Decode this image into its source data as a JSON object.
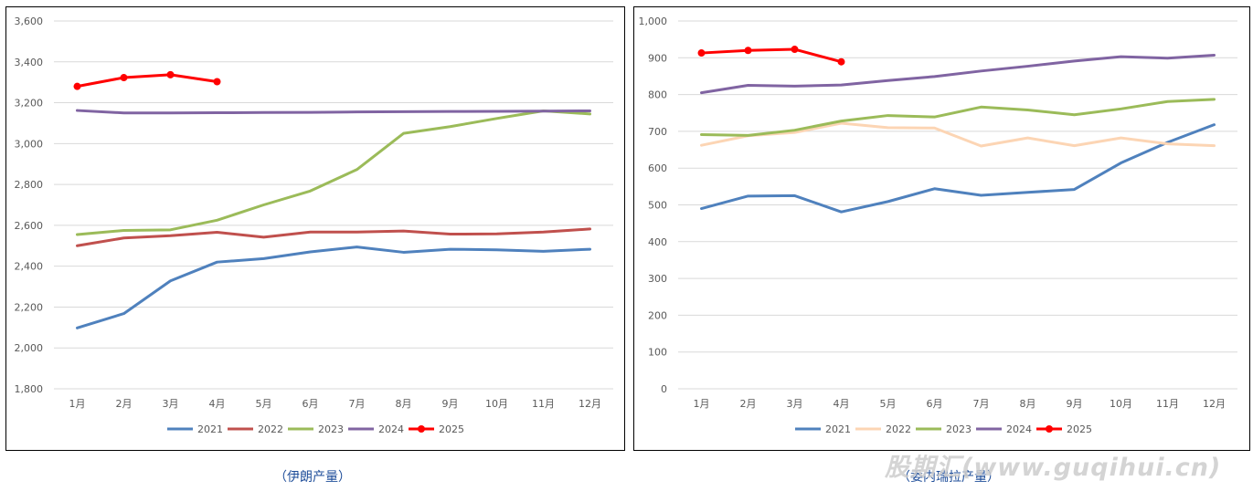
{
  "colors": {
    "2021": "#4f81bd",
    "2022_left": "#c0504d",
    "2022_right": "#fcd5b4",
    "2023": "#9bbb59",
    "2024": "#8064a2",
    "2025": "#ff0000",
    "grid": "#d9d9d9",
    "tick_text": "#595959"
  },
  "captions": {
    "left": "（伊朗产量）",
    "right": "（委内瑞拉产量）"
  },
  "watermark": "股期汇(www.guqihui.cn)",
  "chart_data": [
    {
      "type": "line",
      "categories": [
        "1月",
        "2月",
        "3月",
        "4月",
        "5月",
        "6月",
        "7月",
        "8月",
        "9月",
        "10月",
        "11月",
        "12月"
      ],
      "ylim": [
        1800,
        3600
      ],
      "yticks": [
        1800,
        2000,
        2200,
        2400,
        2600,
        2800,
        3000,
        3200,
        3400,
        3600
      ],
      "ytick_labels": [
        "1,800",
        "2,000",
        "2,200",
        "2,400",
        "2,600",
        "2,800",
        "3,000",
        "3,200",
        "3,400",
        "3,600"
      ],
      "legend_position": "bottom",
      "series": [
        {
          "name": "2021",
          "color_key": "2021",
          "values": [
            2098,
            2168,
            2328,
            2420,
            2437,
            2470,
            2494,
            2468,
            2483,
            2480,
            2473,
            2483
          ],
          "markers": false
        },
        {
          "name": "2022",
          "color_key": "2022_left",
          "values": [
            2500,
            2538,
            2549,
            2566,
            2542,
            2567,
            2567,
            2572,
            2557,
            2558,
            2567,
            2582
          ],
          "markers": false
        },
        {
          "name": "2023",
          "color_key": "2023",
          "values": [
            2555,
            2575,
            2578,
            2625,
            2700,
            2768,
            2873,
            3050,
            3083,
            3123,
            3160,
            3145
          ],
          "markers": false
        },
        {
          "name": "2024",
          "color_key": "2024",
          "values": [
            3162,
            3150,
            3150,
            3151,
            3152,
            3153,
            3155,
            3156,
            3157,
            3158,
            3159,
            3160
          ],
          "markers": false
        },
        {
          "name": "2025",
          "color_key": "2025",
          "values": [
            3280,
            3323,
            3337,
            3303,
            null,
            null,
            null,
            null,
            null,
            null,
            null,
            null
          ],
          "markers": true
        }
      ]
    },
    {
      "type": "line",
      "categories": [
        "1月",
        "2月",
        "3月",
        "4月",
        "5月",
        "6月",
        "7月",
        "8月",
        "9月",
        "10月",
        "11月",
        "12月"
      ],
      "ylim": [
        0,
        1000
      ],
      "yticks": [
        0,
        100,
        200,
        300,
        400,
        500,
        600,
        700,
        800,
        900,
        1000
      ],
      "ytick_labels": [
        "0",
        "100",
        "200",
        "300",
        "400",
        "500",
        "600",
        "700",
        "800",
        "900",
        "1,000"
      ],
      "legend_position": "bottom",
      "series": [
        {
          "name": "2021",
          "color_key": "2021",
          "values": [
            490,
            524,
            525,
            481,
            509,
            544,
            526,
            534,
            542,
            614,
            670,
            718
          ],
          "markers": false
        },
        {
          "name": "2022",
          "color_key": "2022_right",
          "values": [
            662,
            688,
            697,
            722,
            710,
            709,
            660,
            682,
            661,
            682,
            666,
            661
          ],
          "markers": false
        },
        {
          "name": "2023",
          "color_key": "2023",
          "values": [
            691,
            689,
            703,
            728,
            743,
            739,
            766,
            758,
            745,
            761,
            781,
            787
          ],
          "markers": false
        },
        {
          "name": "2024",
          "color_key": "2024",
          "values": [
            805,
            825,
            823,
            826,
            838,
            849,
            864,
            877,
            891,
            903,
            899,
            907
          ],
          "markers": false
        },
        {
          "name": "2025",
          "color_key": "2025",
          "values": [
            913,
            920,
            923,
            889,
            null,
            null,
            null,
            null,
            null,
            null,
            null,
            null
          ],
          "markers": true
        }
      ]
    }
  ]
}
